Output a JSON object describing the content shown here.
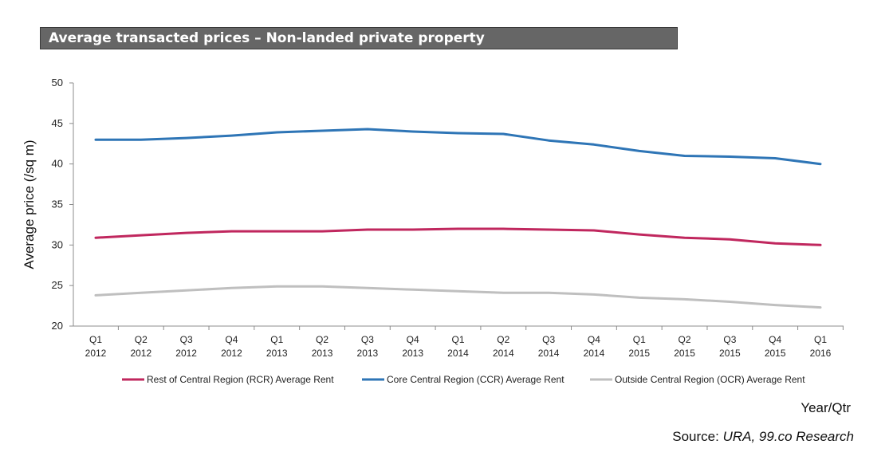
{
  "title": "Average transacted prices – Non-landed private property",
  "source": {
    "label": "Source:",
    "text": "URA, 99.co Research"
  },
  "chart_data": {
    "type": "line",
    "title": "Average transacted prices – Non-landed private property",
    "xlabel": "Year/Qtr",
    "ylabel": "Average price (/sq m)",
    "ylim": [
      20,
      50
    ],
    "yticks": [
      20,
      25,
      30,
      35,
      40,
      45,
      50
    ],
    "grid": false,
    "legend_position": "bottom",
    "categories": [
      [
        "Q1",
        "2012"
      ],
      [
        "Q2",
        "2012"
      ],
      [
        "Q3",
        "2012"
      ],
      [
        "Q4",
        "2012"
      ],
      [
        "Q1",
        "2013"
      ],
      [
        "Q2",
        "2013"
      ],
      [
        "Q3",
        "2013"
      ],
      [
        "Q4",
        "2013"
      ],
      [
        "Q1",
        "2014"
      ],
      [
        "Q2",
        "2014"
      ],
      [
        "Q3",
        "2014"
      ],
      [
        "Q4",
        "2014"
      ],
      [
        "Q1",
        "2015"
      ],
      [
        "Q2",
        "2015"
      ],
      [
        "Q3",
        "2015"
      ],
      [
        "Q4",
        "2015"
      ],
      [
        "Q1",
        "2016"
      ]
    ],
    "series": [
      {
        "name": "Rest of Central Region (RCR) Average Rent",
        "color": "#c0275e",
        "values": [
          30.9,
          31.2,
          31.5,
          31.7,
          31.7,
          31.7,
          31.9,
          31.9,
          32.0,
          32.0,
          31.9,
          31.8,
          31.3,
          30.9,
          30.7,
          30.2,
          30.0
        ]
      },
      {
        "name": "Core Central Region (CCR) Average Rent",
        "color": "#2e75b6",
        "values": [
          43.0,
          43.0,
          43.2,
          43.5,
          43.9,
          44.1,
          44.3,
          44.0,
          43.8,
          43.7,
          42.9,
          42.4,
          41.6,
          41.0,
          40.9,
          40.7,
          40.0
        ]
      },
      {
        "name": "Outside Central Region (OCR) Average Rent",
        "color": "#bfbfbf",
        "values": [
          23.8,
          24.1,
          24.4,
          24.7,
          24.9,
          24.9,
          24.7,
          24.5,
          24.3,
          24.1,
          24.1,
          23.9,
          23.5,
          23.3,
          23.0,
          22.6,
          22.3
        ]
      }
    ]
  }
}
